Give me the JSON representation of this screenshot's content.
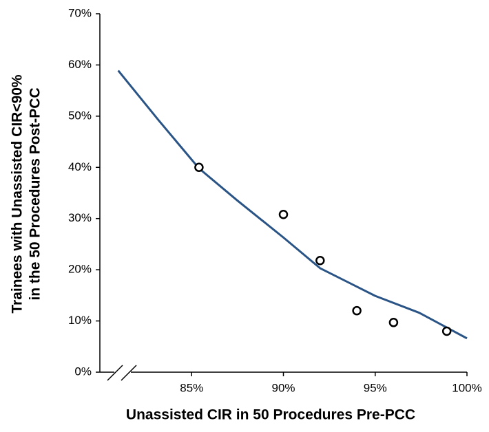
{
  "chart_data": {
    "type": "scatter",
    "x_label": "Unassisted CIR in 50 Procedures Pre-PCC",
    "y_label": [
      "Trainees with Unassisted CIR<90%",
      "in the 50 Procedures Post-PCC"
    ],
    "xlim": [
      80,
      100
    ],
    "ylim": [
      0,
      70
    ],
    "xticks": [
      {
        "value": 85,
        "label": "85%"
      },
      {
        "value": 90,
        "label": "90%"
      },
      {
        "value": 95,
        "label": "95%"
      },
      {
        "value": 100,
        "label": "100%"
      }
    ],
    "yticks": [
      {
        "value": 0,
        "label": "0%"
      },
      {
        "value": 10,
        "label": "10%"
      },
      {
        "value": 20,
        "label": "20%"
      },
      {
        "value": 30,
        "label": "30%"
      },
      {
        "value": 40,
        "label": "40%"
      },
      {
        "value": 50,
        "label": "50%"
      },
      {
        "value": 60,
        "label": "60%"
      },
      {
        "value": 70,
        "label": "70%"
      }
    ],
    "series": [
      {
        "type": "scatter",
        "color": "#000000",
        "x": [
          85.4,
          90,
          92,
          94,
          96,
          98.9
        ],
        "values": [
          40,
          30.8,
          21.8,
          12,
          9.7,
          8
        ]
      },
      {
        "type": "line",
        "color": "#2a5485",
        "x": [
          81,
          83.2,
          85.4,
          87.5,
          90,
          92,
          95,
          97.4,
          100
        ],
        "values": [
          58.9,
          49.2,
          39.8,
          33.5,
          26.3,
          20.3,
          14.9,
          11.6,
          6.6
        ]
      }
    ]
  }
}
